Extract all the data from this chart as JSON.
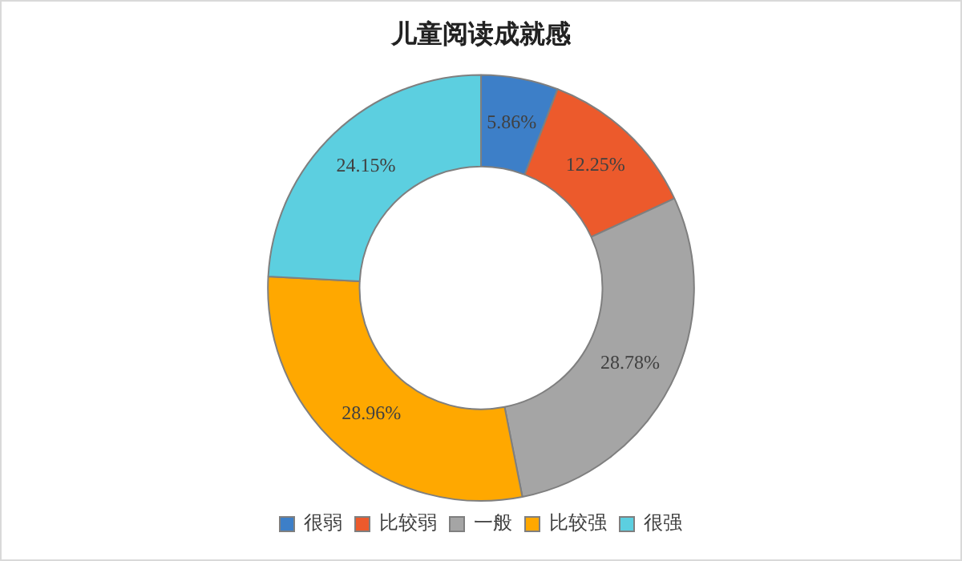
{
  "chart_data": {
    "type": "donut",
    "title": "儿童阅读成就感",
    "categories": [
      "很弱",
      "比较弱",
      "一般",
      "比较强",
      "很强"
    ],
    "values": [
      5.86,
      12.25,
      28.78,
      28.96,
      24.15
    ],
    "colors": [
      "#3d7fc8",
      "#ec5a2c",
      "#a5a5a5",
      "#ffa800",
      "#5ccfe0"
    ],
    "value_labels": [
      "5.86%",
      "12.25%",
      "28.78%",
      "28.96%",
      "24.15%"
    ],
    "legend": "bottom"
  }
}
